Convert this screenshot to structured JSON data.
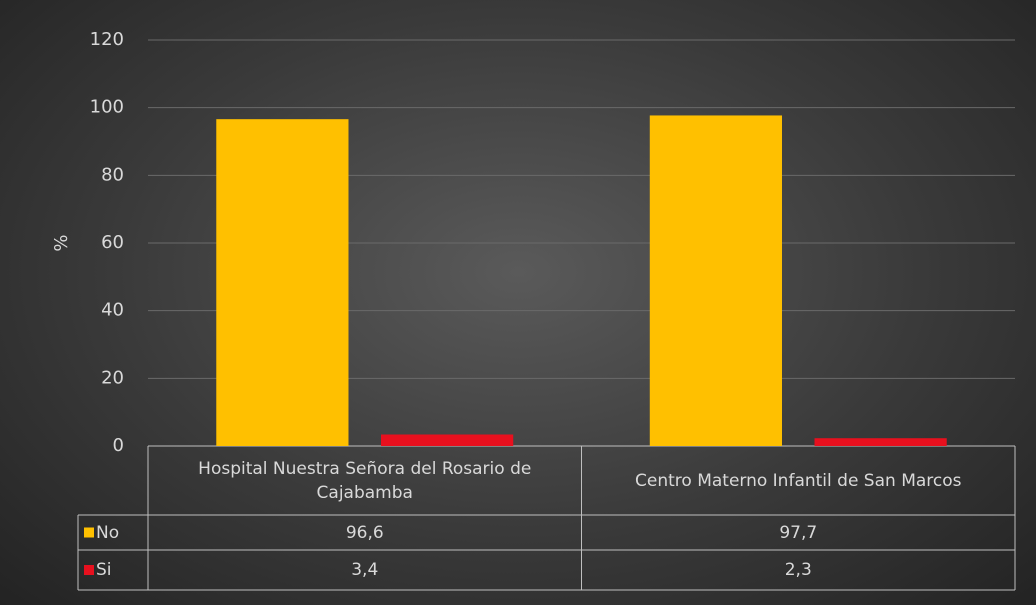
{
  "chart_data": {
    "type": "bar",
    "y_label": "%",
    "categories": [
      "Hospital Nuestra Señora del Rosario de Cajabamba",
      "Centro Materno Infantil de San Marcos"
    ],
    "series": [
      {
        "name": "No",
        "color": "#ffc000",
        "values": [
          96.6,
          97.7
        ],
        "value_labels": [
          "96,6",
          "97,7"
        ]
      },
      {
        "name": "Si",
        "color": "#e8101e",
        "values": [
          3.4,
          2.3
        ],
        "value_labels": [
          "3,4",
          "2,3"
        ]
      }
    ],
    "ylim": [
      0,
      120
    ],
    "yticks": [
      0,
      20,
      40,
      60,
      80,
      100,
      120
    ],
    "grid": true
  }
}
